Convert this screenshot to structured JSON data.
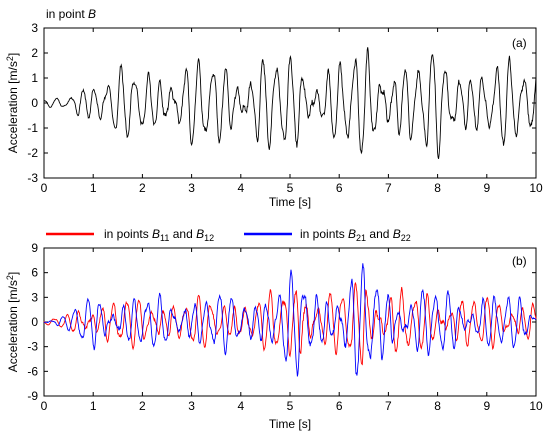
{
  "chart_data": [
    {
      "type": "line",
      "panel_label": "(a)",
      "title": "in point B",
      "title_prefix": "in point ",
      "title_italic": "B",
      "xlabel": "Time [s]",
      "ylabel": "Acceleration [m/s",
      "ylabel_sup": "2",
      "ylabel_end": "]",
      "xlim": [
        0,
        10
      ],
      "ylim": [
        -3,
        3
      ],
      "xticks": [
        "0",
        "1",
        "2",
        "3",
        "4",
        "5",
        "6",
        "7",
        "8",
        "9",
        "10"
      ],
      "yticks": [
        "3",
        "2",
        "1",
        "0",
        "-1",
        "-2",
        "-3"
      ],
      "series": [
        {
          "color": "#000000",
          "envelope": {
            "t": [
              0.0,
              0.5,
              0.8,
              1.5,
              2.0,
              2.5,
              3.0,
              3.5,
              4.0,
              4.5,
              5.0,
              5.5,
              6.0,
              6.5,
              7.0,
              7.5,
              8.0,
              8.5,
              9.0,
              9.5,
              10.0
            ],
            "amp": [
              0.1,
              0.25,
              0.9,
              1.2,
              1.3,
              1.4,
              1.5,
              1.6,
              1.7,
              1.7,
              1.7,
              1.6,
              1.6,
              1.9,
              1.8,
              1.7,
              1.8,
              1.6,
              1.5,
              1.5,
              1.4
            ]
          },
          "freq_hz": 3.8,
          "seed": 11
        }
      ]
    },
    {
      "type": "line",
      "panel_label": "(b)",
      "xlabel": "Time [s]",
      "ylabel": "Acceleration [m/s",
      "ylabel_sup": "2",
      "ylabel_end": "]",
      "xlim": [
        0,
        10
      ],
      "ylim": [
        -9,
        9
      ],
      "xticks": [
        "0",
        "1",
        "2",
        "3",
        "4",
        "5",
        "6",
        "7",
        "8",
        "9",
        "10"
      ],
      "yticks": [
        "9",
        "6",
        "3",
        "0",
        "-3",
        "-6",
        "-9"
      ],
      "series": [
        {
          "legend_text": "in points ",
          "legend_sub1_base": "B",
          "legend_sub1": "11",
          "legend_and": " and ",
          "legend_sub2_base": "B",
          "legend_sub2": "12",
          "color": "#ff0000",
          "envelope": {
            "t": [
              0.0,
              0.5,
              0.8,
              1.5,
              2.0,
              2.5,
              3.0,
              3.5,
              4.0,
              4.5,
              5.0,
              5.2,
              5.5,
              6.0,
              6.5,
              7.0,
              7.5,
              8.0,
              8.5,
              9.0,
              9.5,
              10.0
            ],
            "amp": [
              0.3,
              0.8,
              2.2,
              2.8,
              2.6,
              2.5,
              2.7,
              2.6,
              2.7,
              2.9,
              4.5,
              5.8,
              3.5,
              3.2,
              6.0,
              4.0,
              3.2,
              3.3,
              3.0,
              2.8,
              2.7,
              2.6
            ]
          },
          "freq_hz": 4.1,
          "seed": 23
        },
        {
          "legend_text": "in points ",
          "legend_sub1_base": "B",
          "legend_sub1": "21",
          "legend_and": " and ",
          "legend_sub2_base": "B",
          "legend_sub2": "22",
          "color": "#0000ff",
          "envelope": {
            "t": [
              0.0,
              0.5,
              0.8,
              1.5,
              2.0,
              2.5,
              3.0,
              3.5,
              4.0,
              4.5,
              5.0,
              5.2,
              5.5,
              6.0,
              6.5,
              7.0,
              7.5,
              8.0,
              8.5,
              9.0,
              9.5,
              10.0
            ],
            "amp": [
              0.3,
              0.9,
              2.8,
              3.0,
              2.9,
              2.8,
              3.0,
              3.2,
              3.0,
              3.3,
              5.0,
              6.3,
              4.0,
              3.8,
              6.5,
              4.2,
              3.5,
              3.8,
              3.4,
              3.1,
              3.0,
              2.8
            ]
          },
          "freq_hz": 4.1,
          "seed": 37
        }
      ],
      "legend_placement": "top-center"
    }
  ]
}
